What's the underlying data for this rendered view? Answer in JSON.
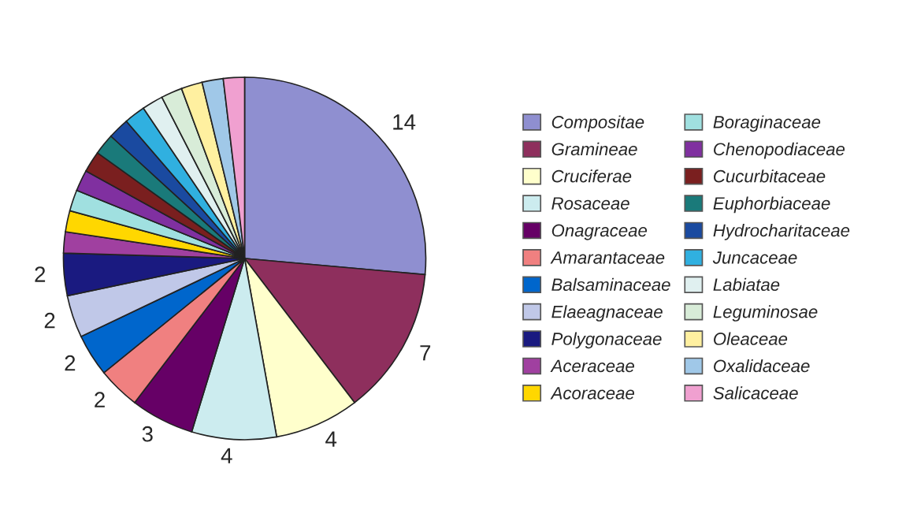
{
  "chart_data": {
    "type": "pie",
    "categories": [
      "Compositae",
      "Gramineae",
      "Cruciferae",
      "Rosaceae",
      "Onagraceae",
      "Amarantaceae",
      "Balsaminaceae",
      "Elaeagnaceae",
      "Polygonaceae",
      "Aceraceae",
      "Acoraceae",
      "Boraginaceae",
      "Chenopodiaceae",
      "Cucurbitaceae",
      "Euphorbiaceae",
      "Hydrocharitaceae",
      "Juncaceae",
      "Labiatae",
      "Leguminosae",
      "Oleaceae",
      "Oxalidaceae",
      "Salicaceae"
    ],
    "values": [
      14,
      7,
      4,
      4,
      3,
      2,
      2,
      2,
      2,
      1,
      1,
      1,
      1,
      1,
      1,
      1,
      1,
      1,
      1,
      1,
      1,
      1
    ],
    "value_labels": [
      "14",
      "7",
      "4",
      "4",
      "3",
      "2",
      "2",
      "2",
      "2",
      null,
      null,
      null,
      null,
      null,
      null,
      null,
      null,
      null,
      null,
      null,
      null,
      null
    ],
    "colors": [
      "#8f8fd0",
      "#8e2f5d",
      "#ffffcc",
      "#ccecef",
      "#660066",
      "#f08080",
      "#0066cc",
      "#c0c8e8",
      "#1a1a80",
      "#a040a0",
      "#ffd700",
      "#a0e0e0",
      "#8030a0",
      "#7a1f1f",
      "#1a7a7a",
      "#1a4aa0",
      "#30b0e0",
      "#e0f0f0",
      "#d8ecd8",
      "#fff0a0",
      "#a0c8e8",
      "#f0a0d0"
    ],
    "legend": "right"
  }
}
